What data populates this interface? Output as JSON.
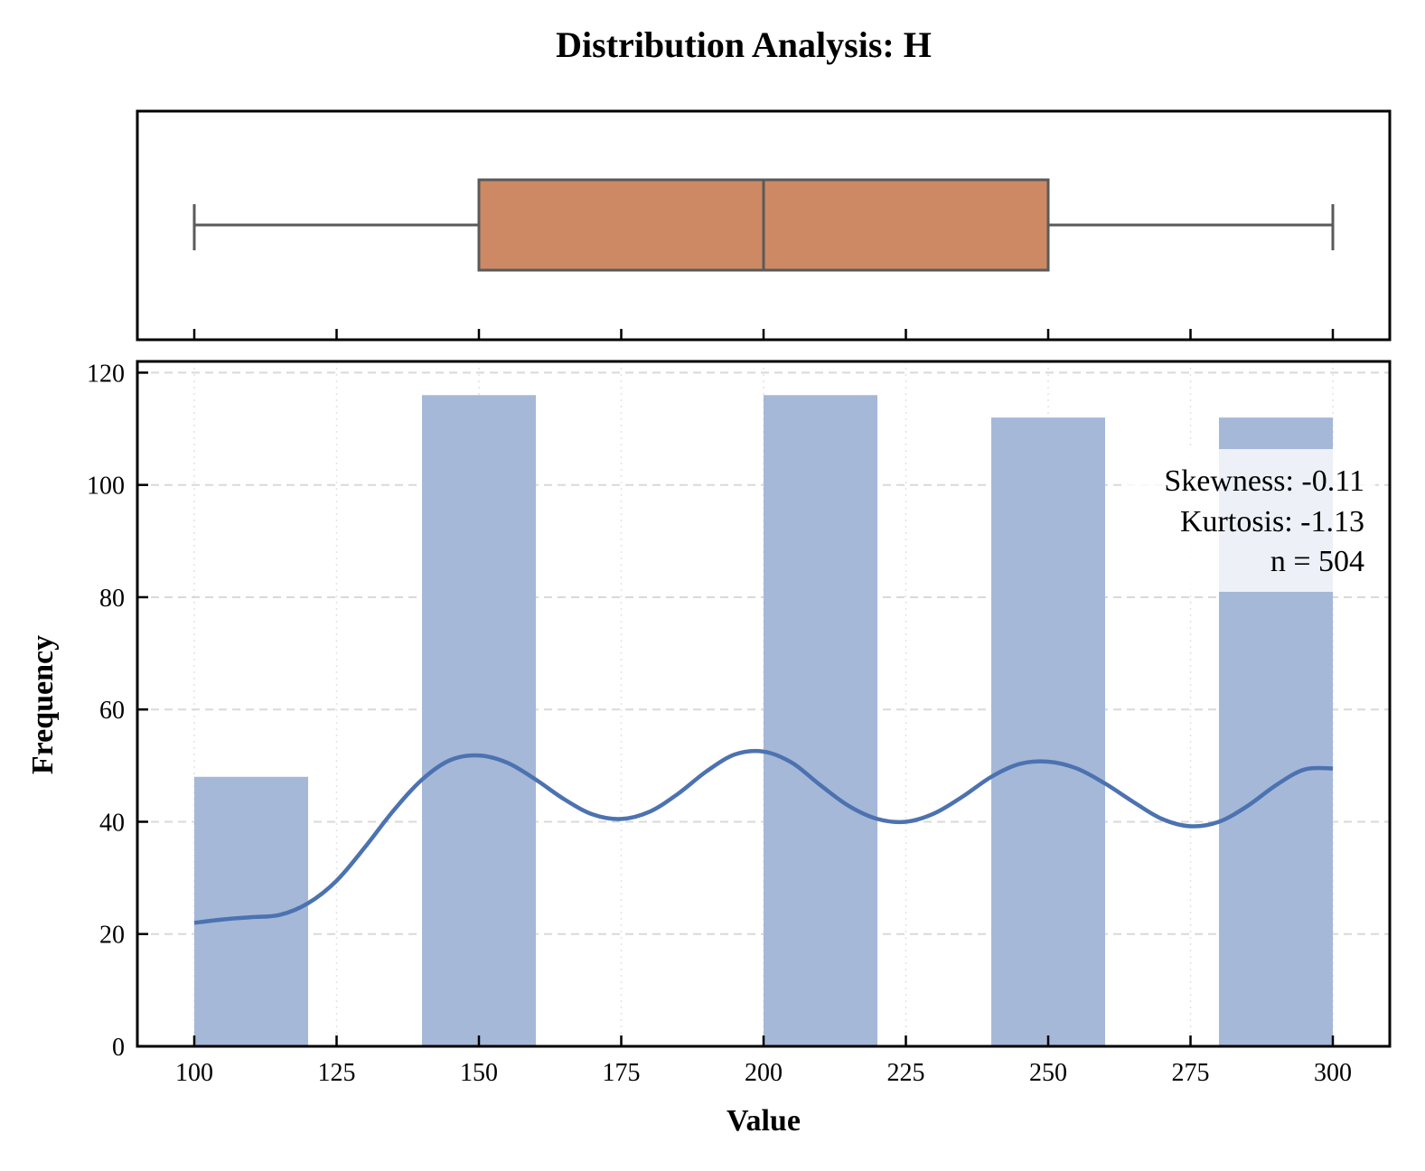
{
  "chart_data": {
    "type": "histogram",
    "title": "Distribution Analysis: H",
    "xlabel": "Value",
    "ylabel": "Frequency",
    "xlim": [
      90,
      310
    ],
    "ylim": [
      0,
      122
    ],
    "x_ticks": [
      100,
      125,
      150,
      175,
      200,
      225,
      250,
      275,
      300
    ],
    "y_ticks": [
      0,
      20,
      40,
      60,
      80,
      100,
      120
    ],
    "grid": true,
    "histogram": {
      "bins": [
        {
          "start": 100,
          "end": 120,
          "count": 48
        },
        {
          "start": 140,
          "end": 160,
          "count": 116
        },
        {
          "start": 200,
          "end": 220,
          "count": 116
        },
        {
          "start": 240,
          "end": 260,
          "count": 112
        },
        {
          "start": 280,
          "end": 300,
          "count": 112
        }
      ],
      "color": "#a5b8d8"
    },
    "kde": {
      "color": "#4c72b0",
      "points": [
        [
          100,
          22
        ],
        [
          105,
          22.6
        ],
        [
          110,
          23
        ],
        [
          115,
          23.4
        ],
        [
          120,
          25.5
        ],
        [
          125,
          29.5
        ],
        [
          130,
          35.5
        ],
        [
          135,
          42
        ],
        [
          140,
          47.5
        ],
        [
          145,
          51
        ],
        [
          150,
          51.8
        ],
        [
          155,
          50.5
        ],
        [
          160,
          47.5
        ],
        [
          165,
          44
        ],
        [
          170,
          41.3
        ],
        [
          175,
          40.5
        ],
        [
          180,
          41.8
        ],
        [
          185,
          45
        ],
        [
          190,
          49
        ],
        [
          195,
          52
        ],
        [
          200,
          52.5
        ],
        [
          205,
          50.5
        ],
        [
          210,
          46.5
        ],
        [
          215,
          42.8
        ],
        [
          220,
          40.5
        ],
        [
          225,
          40
        ],
        [
          230,
          41.5
        ],
        [
          235,
          44.5
        ],
        [
          240,
          48
        ],
        [
          245,
          50.3
        ],
        [
          250,
          50.7
        ],
        [
          255,
          49.5
        ],
        [
          260,
          46.8
        ],
        [
          265,
          43.5
        ],
        [
          270,
          40.5
        ],
        [
          275,
          39.2
        ],
        [
          280,
          40
        ],
        [
          285,
          42.8
        ],
        [
          290,
          46.5
        ],
        [
          295,
          49.3
        ],
        [
          300,
          49.5
        ]
      ]
    },
    "boxplot": {
      "min": 100,
      "q1": 150,
      "median": 200,
      "q3": 250,
      "max": 300,
      "color": "#cc8963"
    },
    "stats": {
      "skewness": "Skewness: -0.11",
      "kurtosis": "Kurtosis: -1.13",
      "n": "n = 504"
    }
  }
}
